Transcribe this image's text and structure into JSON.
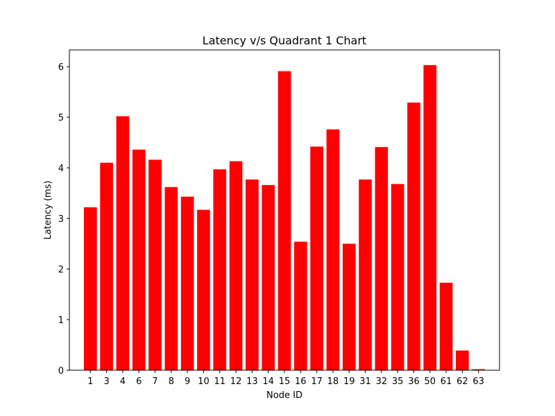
{
  "chart_data": {
    "type": "bar",
    "title": "Latency v/s Quadrant 1 Chart",
    "xlabel": "Node ID",
    "ylabel": "Latency (ms)",
    "categories": [
      "1",
      "3",
      "4",
      "6",
      "7",
      "8",
      "9",
      "10",
      "11",
      "12",
      "13",
      "14",
      "15",
      "16",
      "17",
      "18",
      "19",
      "31",
      "32",
      "35",
      "36",
      "50",
      "61",
      "62",
      "63"
    ],
    "values": [
      3.22,
      4.1,
      5.02,
      4.36,
      4.16,
      3.62,
      3.43,
      3.17,
      3.97,
      4.13,
      3.77,
      3.66,
      5.91,
      2.54,
      4.42,
      4.76,
      2.5,
      3.77,
      4.41,
      3.68,
      5.29,
      6.03,
      1.73,
      0.39,
      0.02
    ],
    "ylim": [
      0,
      6.33
    ],
    "yticks": [
      0,
      1,
      2,
      3,
      4,
      5,
      6
    ],
    "bar_color": "#ff0000",
    "grid": false,
    "legend": "none"
  }
}
